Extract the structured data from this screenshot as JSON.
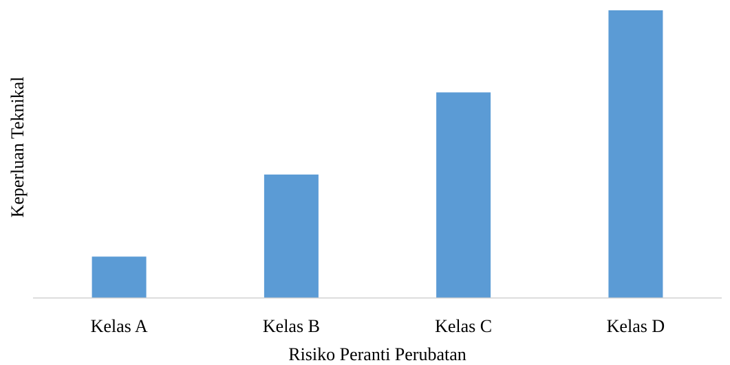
{
  "chart_data": {
    "type": "bar",
    "categories": [
      "Kelas A",
      "Kelas B",
      "Kelas C",
      "Kelas D"
    ],
    "values": [
      1,
      3,
      5,
      7
    ],
    "ylim": [
      0,
      7
    ],
    "xlabel": "Risiko Peranti Perubatan",
    "ylabel": "Keperluan Teknikal",
    "grid": false,
    "y_tick_labels_shown": false,
    "colors": {
      "bar": "#5b9bd5",
      "axis": "#d0d0d0",
      "text": "#000000"
    }
  }
}
